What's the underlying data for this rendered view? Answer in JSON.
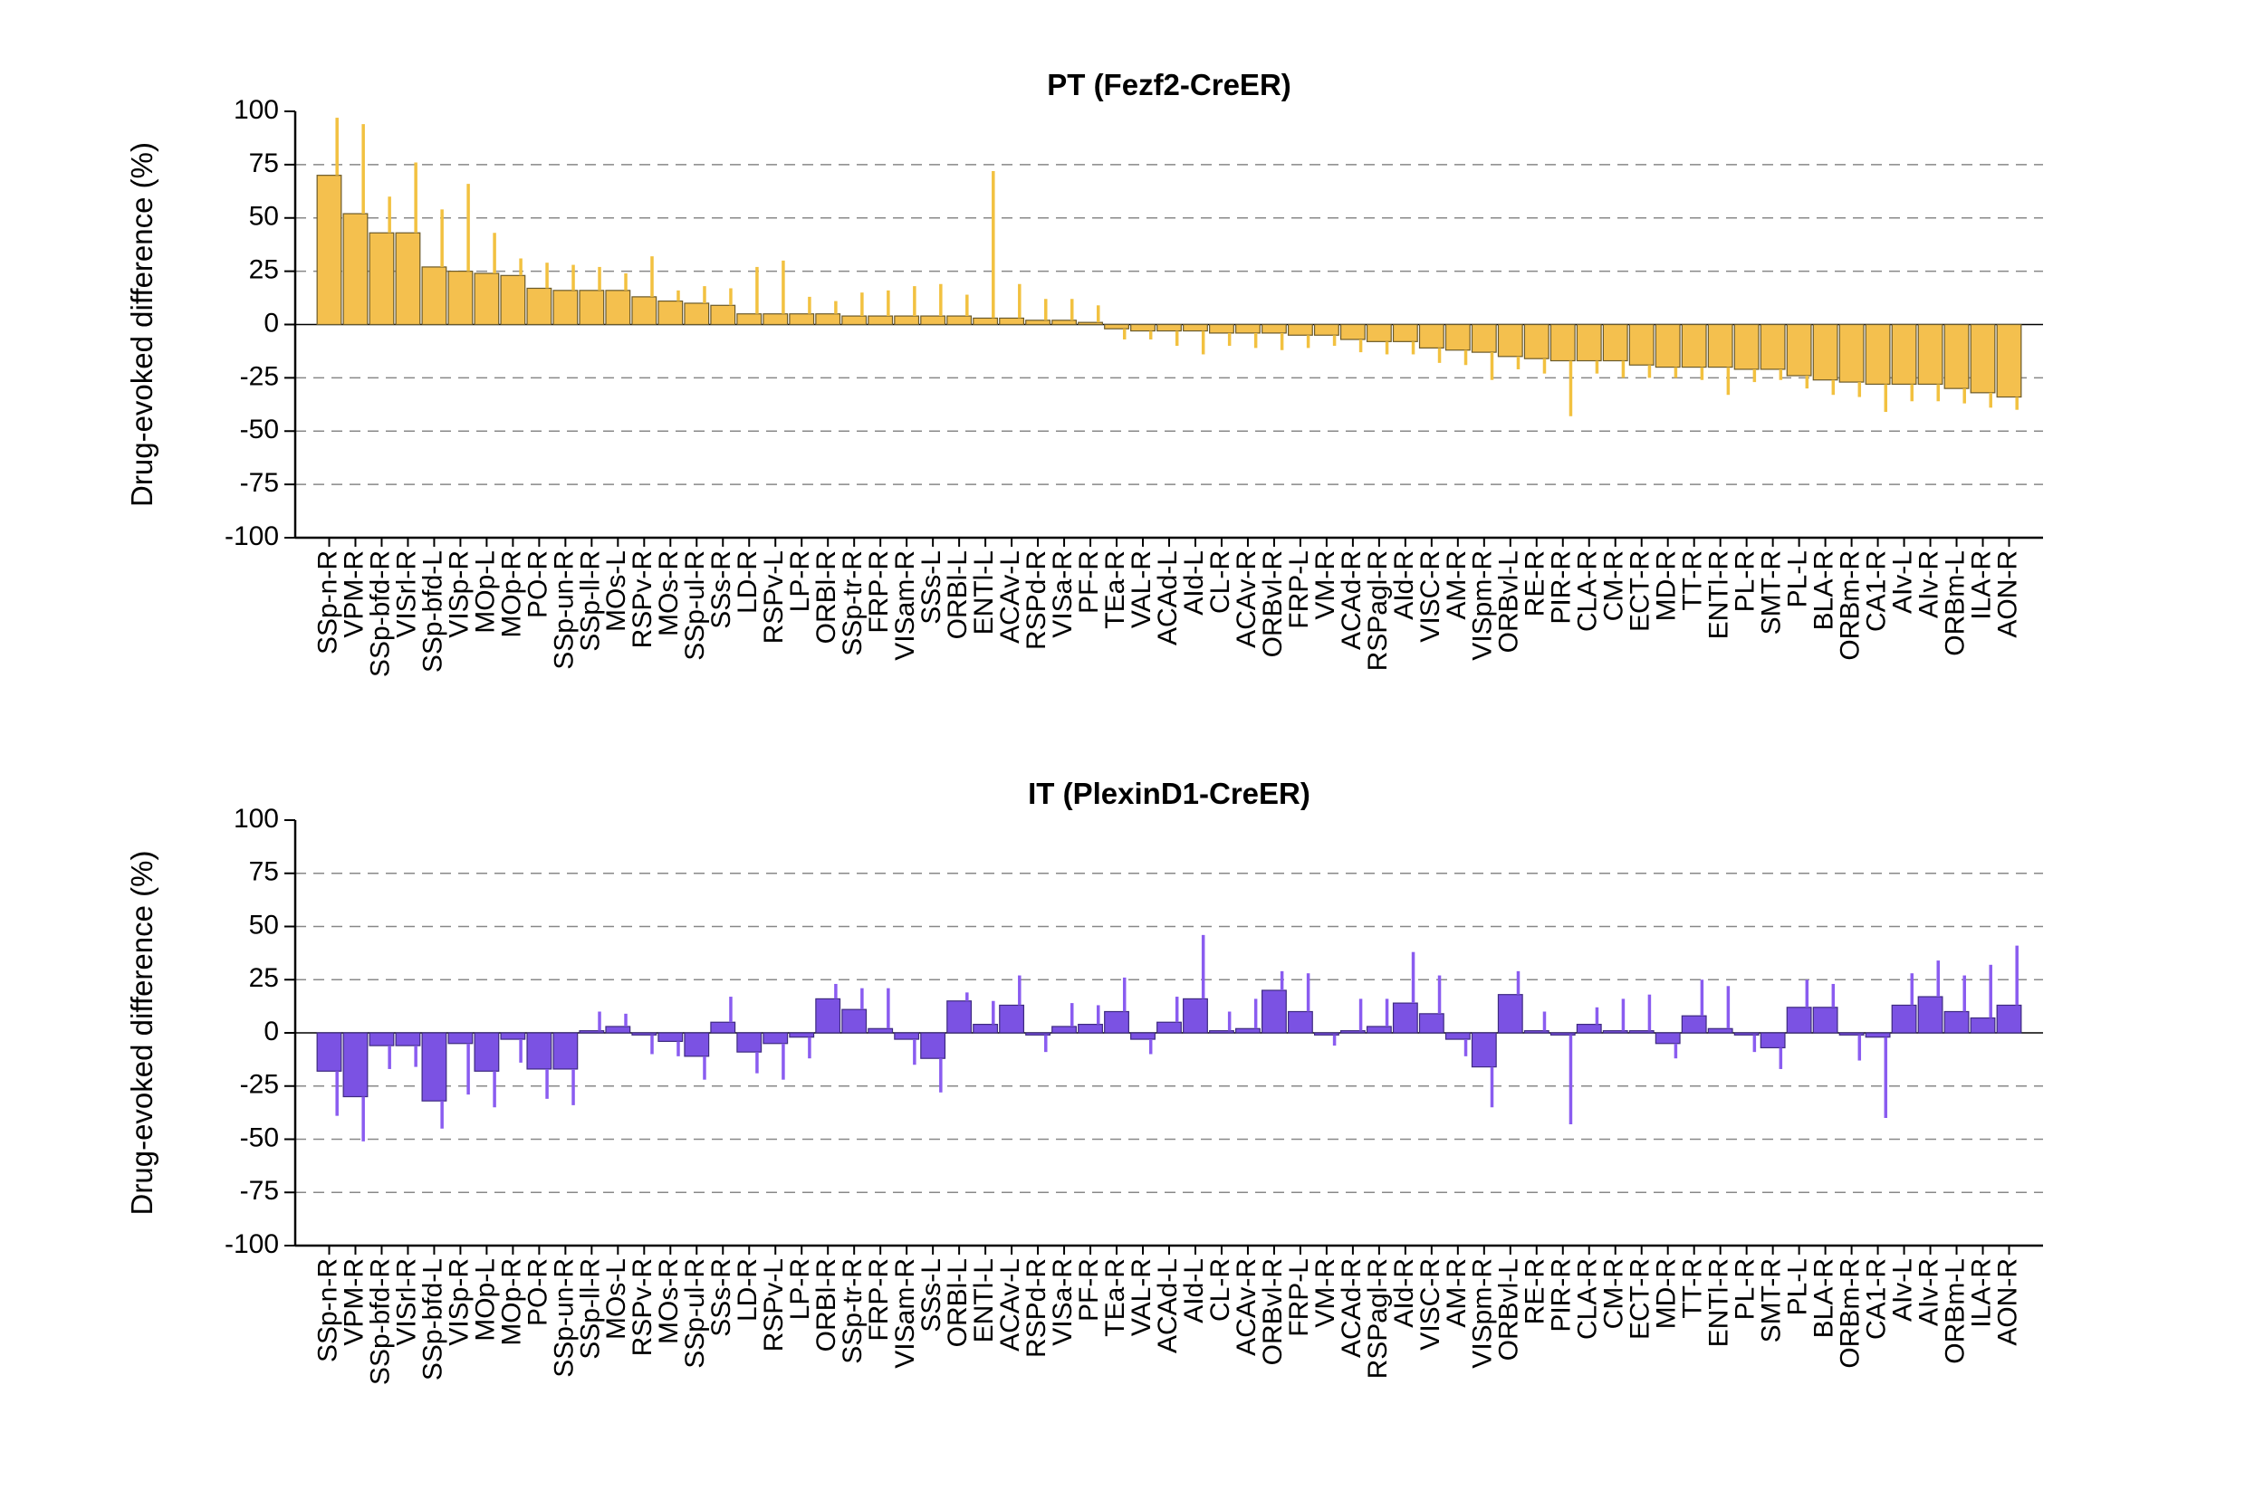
{
  "chart_data": [
    {
      "type": "bar",
      "title": "PT (Fezf2-CreER)",
      "y_label": "Drug-evoked difference (%)",
      "categories": [
        "SSp-n-R",
        "VPM-R",
        "SSp-bfd-R",
        "VISrl-R",
        "SSp-bfd-L",
        "VISp-R",
        "MOp-L",
        "MOp-R",
        "PO-R",
        "SSp-un-R",
        "SSp-ll-R",
        "MOs-L",
        "RSPv-R",
        "MOs-R",
        "SSp-ul-R",
        "SSs-R",
        "LD-R",
        "RSPv-L",
        "LP-R",
        "ORBl-R",
        "SSp-tr-R",
        "FRP-R",
        "VISam-R",
        "SSs-L",
        "ORBl-L",
        "ENTl-L",
        "ACAv-L",
        "RSPd-R",
        "VISa-R",
        "PF-R",
        "TEa-R",
        "VAL-R",
        "ACAd-L",
        "AId-L",
        "CL-R",
        "ACAv-R",
        "ORBvl-R",
        "FRP-L",
        "VM-R",
        "ACAd-R",
        "RSPagl-R",
        "AId-R",
        "VISC-R",
        "AM-R",
        "VISpm-R",
        "ORBvl-L",
        "RE-R",
        "PIR-R",
        "CLA-R",
        "CM-R",
        "ECT-R",
        "MD-R",
        "TT-R",
        "ENTl-R",
        "PL-R",
        "SMT-R",
        "PL-L",
        "BLA-R",
        "ORBm-R",
        "CA1-R",
        "AIv-L",
        "AIv-R",
        "ORBm-L",
        "ILA-R",
        "AON-R"
      ],
      "values": [
        70,
        52,
        43,
        43,
        27,
        25,
        24,
        23,
        17,
        16,
        16,
        16,
        13,
        11,
        10,
        9,
        5,
        5,
        5,
        5,
        4,
        4,
        4,
        4,
        4,
        3,
        3,
        2,
        2,
        1,
        -2,
        -3,
        -3,
        -3,
        -4,
        -4,
        -4,
        -5,
        -5,
        -7,
        -8,
        -8,
        -11,
        -12,
        -13,
        -15,
        -16,
        -17,
        -17,
        -17,
        -19,
        -20,
        -20,
        -20,
        -21,
        -21,
        -24,
        -26,
        -27,
        -28,
        -28,
        -28,
        -30,
        -32,
        -34
      ],
      "errors": [
        27,
        42,
        17,
        33,
        27,
        41,
        19,
        8,
        12,
        12,
        11,
        8,
        19,
        5,
        8,
        8,
        22,
        25,
        8,
        6,
        11,
        12,
        14,
        15,
        10,
        69,
        16,
        10,
        10,
        8,
        5,
        4,
        7,
        11,
        6,
        7,
        8,
        6,
        5,
        6,
        6,
        6,
        7,
        7,
        13,
        6,
        7,
        26,
        6,
        8,
        6,
        5,
        6,
        13,
        6,
        5,
        6,
        7,
        7,
        13,
        8,
        8,
        7,
        7,
        6
      ],
      "color": "#f4c04e",
      "edge_color": "#6b5a2a",
      "error_color": "#f2c140",
      "ylim": [
        -100,
        100
      ],
      "yticks": [
        100,
        75,
        50,
        25,
        0,
        -25,
        -50,
        -75,
        -100
      ],
      "grid": true
    },
    {
      "type": "bar",
      "title": "IT (PlexinD1-CreER)",
      "y_label": "Drug-evoked difference (%)",
      "categories": [
        "SSp-n-R",
        "VPM-R",
        "SSp-bfd-R",
        "VISrl-R",
        "SSp-bfd-L",
        "VISp-R",
        "MOp-L",
        "MOp-R",
        "PO-R",
        "SSp-un-R",
        "SSp-ll-R",
        "MOs-L",
        "RSPv-R",
        "MOs-R",
        "SSp-ul-R",
        "SSs-R",
        "LD-R",
        "RSPv-L",
        "LP-R",
        "ORBl-R",
        "SSp-tr-R",
        "FRP-R",
        "VISam-R",
        "SSs-L",
        "ORBl-L",
        "ENTl-L",
        "ACAv-L",
        "RSPd-R",
        "VISa-R",
        "PF-R",
        "TEa-R",
        "VAL-R",
        "ACAd-L",
        "AId-L",
        "CL-R",
        "ACAv-R",
        "ORBvl-R",
        "FRP-L",
        "VM-R",
        "ACAd-R",
        "RSPagl-R",
        "AId-R",
        "VISC-R",
        "AM-R",
        "VISpm-R",
        "ORBvl-L",
        "RE-R",
        "PIR-R",
        "CLA-R",
        "CM-R",
        "ECT-R",
        "MD-R",
        "TT-R",
        "ENTl-R",
        "PL-R",
        "SMT-R",
        "PL-L",
        "BLA-R",
        "ORBm-R",
        "CA1-R",
        "AIv-L",
        "AIv-R",
        "ORBm-L",
        "ILA-R",
        "AON-R"
      ],
      "values": [
        -18,
        -30,
        -6,
        -6,
        -32,
        -5,
        -18,
        -3,
        -17,
        -17,
        1,
        3,
        -1,
        -4,
        -11,
        5,
        -9,
        -5,
        -2,
        16,
        11,
        2,
        -3,
        -12,
        15,
        4,
        13,
        -1,
        3,
        4,
        10,
        -3,
        5,
        16,
        1,
        2,
        20,
        10,
        -1,
        1,
        3,
        14,
        9,
        -3,
        -16,
        18,
        1,
        -1,
        4,
        1,
        1,
        -5,
        8,
        2,
        -1,
        -7,
        12,
        12,
        -1,
        -2,
        13,
        17,
        10,
        7,
        13
      ],
      "errors": [
        21,
        21,
        11,
        10,
        13,
        24,
        17,
        11,
        14,
        17,
        9,
        6,
        9,
        7,
        11,
        12,
        10,
        17,
        10,
        7,
        10,
        19,
        12,
        16,
        4,
        11,
        14,
        8,
        11,
        9,
        16,
        7,
        12,
        30,
        9,
        14,
        9,
        18,
        5,
        15,
        13,
        24,
        18,
        8,
        19,
        11,
        9,
        42,
        8,
        15,
        17,
        7,
        17,
        20,
        8,
        10,
        13,
        11,
        12,
        38,
        15,
        17,
        17,
        25,
        28
      ],
      "color": "#7b52e3",
      "edge_color": "#3e2a80",
      "error_color": "#8a5cf0",
      "ylim": [
        -100,
        100
      ],
      "yticks": [
        100,
        75,
        50,
        25,
        0,
        -25,
        -50,
        -75,
        -100
      ],
      "grid": true
    }
  ]
}
